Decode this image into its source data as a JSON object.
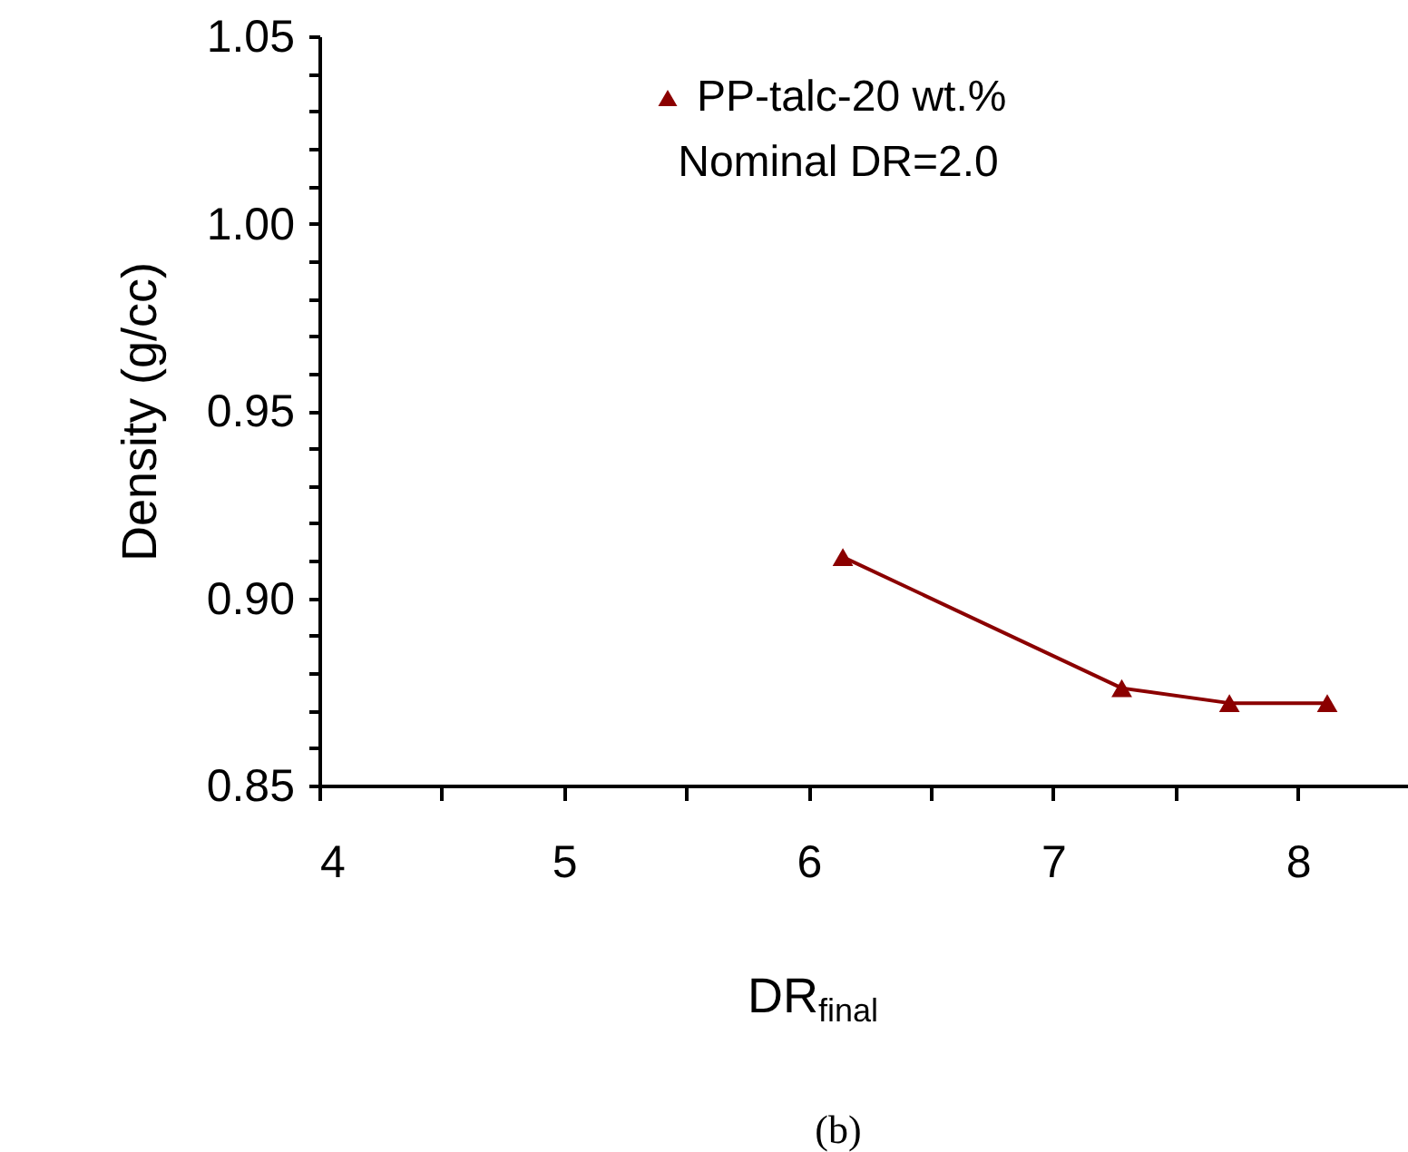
{
  "chart_data": {
    "type": "line",
    "xlabel": "DR$_{final}$",
    "ylabel": "Density (g/cc)",
    "x": [
      6.14,
      7.28,
      7.72,
      8.12
    ],
    "series": [
      {
        "name": "PP-talc-20 wt.%",
        "color": "#8b0000",
        "values": [
          0.911,
          0.876,
          0.872,
          0.872
        ]
      }
    ],
    "xlim": [
      4,
      8.45
    ],
    "xticks": [
      4,
      {
        "value": 4.5,
        "label": null
      },
      5,
      {
        "value": 5.5,
        "label": null
      },
      6,
      {
        "value": 6.5,
        "label": null
      },
      7,
      {
        "value": 7.5,
        "label": null
      },
      8
    ],
    "ylim": [
      0.85,
      1.05
    ],
    "yticks": [
      {
        "value": 0.85,
        "label": "0.85"
      },
      {
        "value": 0.86,
        "label": null
      },
      {
        "value": 0.87,
        "label": null
      },
      {
        "value": 0.88,
        "label": null
      },
      {
        "value": 0.89,
        "label": null
      },
      {
        "value": 0.9,
        "label": "0.90"
      },
      {
        "value": 0.91,
        "label": null
      },
      {
        "value": 0.92,
        "label": null
      },
      {
        "value": 0.93,
        "label": null
      },
      {
        "value": 0.94,
        "label": null
      },
      {
        "value": 0.95,
        "label": "0.95"
      },
      {
        "value": 0.96,
        "label": null
      },
      {
        "value": 0.97,
        "label": null
      },
      {
        "value": 0.98,
        "label": null
      },
      {
        "value": 0.99,
        "label": null
      },
      {
        "value": 1.0,
        "label": "1.00"
      },
      {
        "value": 1.01,
        "label": null
      },
      {
        "value": 1.02,
        "label": null
      },
      {
        "value": 1.03,
        "label": null
      },
      {
        "value": 1.04,
        "label": null
      },
      {
        "value": 1.05,
        "label": "1.05"
      }
    ],
    "grid": false,
    "legend": "top",
    "marker": "triangle",
    "line_style": "solid",
    "annotations": [
      "Nominal DR=2.0",
      "(b)"
    ]
  }
}
